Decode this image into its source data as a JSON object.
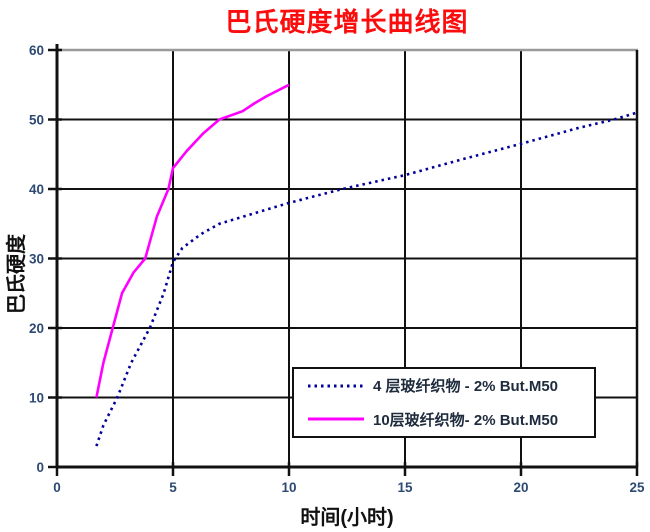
{
  "colors": {
    "title": "#fb0d0d",
    "axis": "#111111",
    "grid": "#111111",
    "top_border": "#9a9a9a",
    "tick_label": "#2e4a73",
    "series1": "#000099",
    "series2": "#ff00ff"
  },
  "chart_data": {
    "type": "line",
    "title": "巴氏硬度增长曲线图",
    "xlabel": "时间(小时)",
    "ylabel": "巴氏硬度",
    "xlim": [
      0,
      25
    ],
    "ylim": [
      0,
      60
    ],
    "xticks": [
      0,
      5,
      10,
      15,
      20,
      25
    ],
    "yticks": [
      0,
      10,
      20,
      30,
      40,
      50,
      60
    ],
    "grid": true,
    "legend_position": "inside-lower-right",
    "series": [
      {
        "name": "4 层玻纤织物 - 2% But.M50",
        "color": "#000099",
        "style": "dotted",
        "points": [
          [
            1.7,
            3
          ],
          [
            2.0,
            6
          ],
          [
            2.6,
            10
          ],
          [
            3.2,
            15
          ],
          [
            4.0,
            20
          ],
          [
            4.6,
            25
          ],
          [
            5.0,
            29.5
          ],
          [
            5.4,
            31.5
          ],
          [
            6.2,
            33.5
          ],
          [
            7.0,
            35
          ],
          [
            8.5,
            36.5
          ],
          [
            10,
            38
          ],
          [
            12.3,
            40
          ],
          [
            15,
            42
          ],
          [
            17.5,
            44.3
          ],
          [
            20,
            46.5
          ],
          [
            22.5,
            48.8
          ],
          [
            24,
            50
          ],
          [
            25,
            51
          ]
        ]
      },
      {
        "name": "10层玻纤织物- 2% But.M50",
        "color": "#ff00ff",
        "style": "solid",
        "points": [
          [
            1.7,
            10
          ],
          [
            2.0,
            15
          ],
          [
            2.4,
            20
          ],
          [
            2.8,
            25
          ],
          [
            3.3,
            28
          ],
          [
            3.8,
            30
          ],
          [
            4.3,
            36
          ],
          [
            4.8,
            40
          ],
          [
            5.0,
            43
          ],
          [
            5.6,
            45.5
          ],
          [
            6.3,
            48
          ],
          [
            7.0,
            50
          ],
          [
            8.0,
            51.2
          ],
          [
            8.5,
            52.3
          ],
          [
            9.0,
            53.3
          ],
          [
            10,
            55
          ]
        ]
      }
    ]
  }
}
